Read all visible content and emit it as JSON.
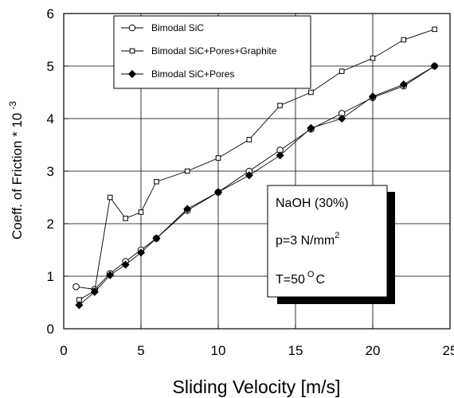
{
  "chart_data": {
    "type": "line",
    "xlabel": "Sliding Velocity  [m/s]",
    "ylabel": "Coeff. of Friction * 10",
    "ylabel_exponent": "-3",
    "xlim": [
      0,
      25
    ],
    "ylim": [
      0,
      6
    ],
    "xticks": [
      0,
      5,
      10,
      15,
      20,
      25
    ],
    "yticks": [
      0,
      1,
      2,
      3,
      4,
      5,
      6
    ],
    "grid": true,
    "legend_position": "top-left",
    "series": [
      {
        "name": "Bimodal SiC",
        "marker": "circle",
        "x": [
          0.8,
          2,
          3,
          4,
          5,
          6,
          8,
          10,
          12,
          14,
          16,
          18,
          20,
          22,
          24
        ],
        "y": [
          0.8,
          0.75,
          1.05,
          1.28,
          1.5,
          1.72,
          2.25,
          2.6,
          3.0,
          3.4,
          3.8,
          4.1,
          4.4,
          4.62,
          5.0
        ]
      },
      {
        "name": "Bimodal SiC+Pores+Graphite",
        "marker": "square",
        "x": [
          1,
          2,
          3,
          4,
          5,
          6,
          8,
          10,
          12,
          14,
          16,
          18,
          20,
          22,
          24
        ],
        "y": [
          0.55,
          0.72,
          2.5,
          2.1,
          2.22,
          2.8,
          3.0,
          3.25,
          3.6,
          4.25,
          4.5,
          4.9,
          5.15,
          5.5,
          5.7
        ]
      },
      {
        "name": "Bimodal SiC+Pores",
        "marker": "diamond",
        "x": [
          1,
          2,
          3,
          4,
          5,
          6,
          8,
          10,
          12,
          14,
          16,
          18,
          20,
          22,
          24
        ],
        "y": [
          0.45,
          0.7,
          1.02,
          1.22,
          1.45,
          1.72,
          2.28,
          2.6,
          2.92,
          3.3,
          3.82,
          4.0,
          4.42,
          4.65,
          5.0
        ]
      }
    ],
    "annotation": {
      "line1": "NaOH   (30%)",
      "line2_base": "p=3 N/mm",
      "line2_sup": "2",
      "line3_pre": "T=50",
      "line3_sup": "O",
      "line3_post": "C"
    }
  }
}
